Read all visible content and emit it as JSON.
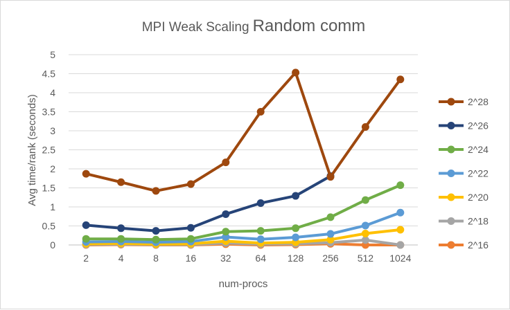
{
  "chart_data": {
    "type": "line",
    "title_part1": "MPI Weak Scaling",
    "title_part2": "Random comm",
    "xlabel": "num-procs",
    "ylabel": "Avg time/rank (seconds)",
    "categories": [
      "2",
      "4",
      "8",
      "16",
      "32",
      "64",
      "128",
      "256",
      "512",
      "1024"
    ],
    "ylim": [
      0,
      5
    ],
    "yticks": [
      "0",
      "0.5",
      "1",
      "1.5",
      "2",
      "2.5",
      "3",
      "3.5",
      "4",
      "4.5",
      "5"
    ],
    "grid": true,
    "legend_position": "right",
    "series": [
      {
        "name": "2^28",
        "color": "#9e480e",
        "values": [
          1.87,
          1.65,
          1.42,
          1.6,
          2.17,
          3.5,
          4.53,
          1.79,
          3.1,
          4.35
        ]
      },
      {
        "name": "2^26",
        "color": "#264478",
        "values": [
          0.52,
          0.44,
          0.37,
          0.45,
          0.81,
          1.1,
          1.29,
          1.81,
          null,
          null
        ]
      },
      {
        "name": "2^24",
        "color": "#70ad47",
        "values": [
          0.16,
          0.16,
          0.14,
          0.16,
          0.35,
          0.37,
          0.44,
          0.73,
          1.18,
          1.57
        ]
      },
      {
        "name": "2^22",
        "color": "#5b9bd5",
        "values": [
          0.08,
          0.09,
          0.07,
          0.09,
          0.21,
          0.15,
          0.2,
          0.29,
          0.51,
          0.85
        ]
      },
      {
        "name": "2^20",
        "color": "#ffc000",
        "values": [
          0.03,
          0.04,
          0.02,
          0.03,
          0.1,
          0.05,
          0.07,
          0.14,
          0.3,
          0.4
        ]
      },
      {
        "name": "2^18",
        "color": "#a5a5a5",
        "values": [
          0.01,
          0.02,
          0.01,
          0.01,
          0.05,
          0.02,
          0.03,
          0.06,
          0.13,
          0.0
        ]
      },
      {
        "name": "2^16",
        "color": "#ed7d31",
        "values": [
          0.0,
          0.01,
          0.0,
          0.0,
          0.02,
          0.0,
          0.01,
          0.03,
          0.0,
          0.0
        ]
      }
    ]
  }
}
